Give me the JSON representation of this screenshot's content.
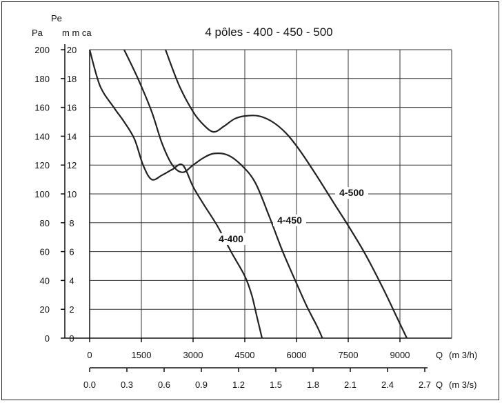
{
  "chart_data": {
    "type": "line",
    "title": "4 pôles - 400 - 450 - 500",
    "y_axes": [
      {
        "label": "Pa",
        "ticks": [
          "0",
          "20",
          "40",
          "60",
          "80",
          "100",
          "120",
          "140",
          "160",
          "180",
          "200"
        ],
        "range": [
          0,
          200
        ]
      },
      {
        "label_line1": "Pe",
        "label_line2": "m m ca",
        "ticks": [
          "0",
          "2",
          "4",
          "6",
          "8",
          "10",
          "12",
          "14",
          "16",
          "18",
          "20"
        ],
        "range": [
          0,
          20
        ]
      }
    ],
    "x_axes": [
      {
        "label_prefix": "Q",
        "label_unit": "(m 3/h)",
        "ticks": [
          "0",
          "1500",
          "3000",
          "4500",
          "6000",
          "7500",
          "9000"
        ],
        "range": [
          0,
          10500
        ]
      },
      {
        "label_prefix": "Q",
        "label_unit": "(m 3/s)",
        "ticks": [
          "0.0",
          "0.3",
          "0.6",
          "0.9",
          "1.2",
          "1.5",
          "1.8",
          "2.1",
          "2.4",
          "2.7"
        ],
        "range": [
          0,
          2.9167
        ]
      }
    ],
    "grid": true,
    "series": [
      {
        "name": "4-400",
        "x": [
          0,
          300,
          700,
          1000,
          1300,
          1550,
          1800,
          2100,
          2400,
          2700,
          3000,
          3300,
          3700,
          4100,
          4500,
          4700,
          4850,
          5000
        ],
        "y": [
          200,
          175,
          160,
          150,
          138,
          120,
          110,
          113,
          117,
          120,
          105,
          93,
          78,
          60,
          43,
          30,
          15,
          0
        ]
      },
      {
        "name": "4-450",
        "x": [
          1000,
          1400,
          1800,
          2100,
          2400,
          2700,
          3000,
          3300,
          3600,
          4000,
          4400,
          4800,
          5200,
          5600,
          6000,
          6300,
          6600,
          6750
        ],
        "y": [
          200,
          180,
          157,
          135,
          120,
          115,
          120,
          125,
          128,
          127,
          120,
          108,
          85,
          60,
          38,
          22,
          8,
          0
        ]
      },
      {
        "name": "4-500",
        "x": [
          2200,
          2600,
          3000,
          3300,
          3600,
          3900,
          4200,
          4500,
          4900,
          5300,
          5700,
          6100,
          6600,
          7100,
          7500,
          8000,
          8500,
          8900,
          9200
        ],
        "y": [
          200,
          175,
          157,
          148,
          143,
          147,
          152,
          154,
          154,
          150,
          142,
          130,
          112,
          93,
          78,
          58,
          35,
          15,
          0
        ]
      }
    ],
    "series_label_positions": [
      {
        "name": "4-400",
        "x": 4100,
        "y": 67
      },
      {
        "name": "4-450",
        "x": 5800,
        "y": 80
      },
      {
        "name": "4-500",
        "x": 7600,
        "y": 99
      }
    ]
  }
}
